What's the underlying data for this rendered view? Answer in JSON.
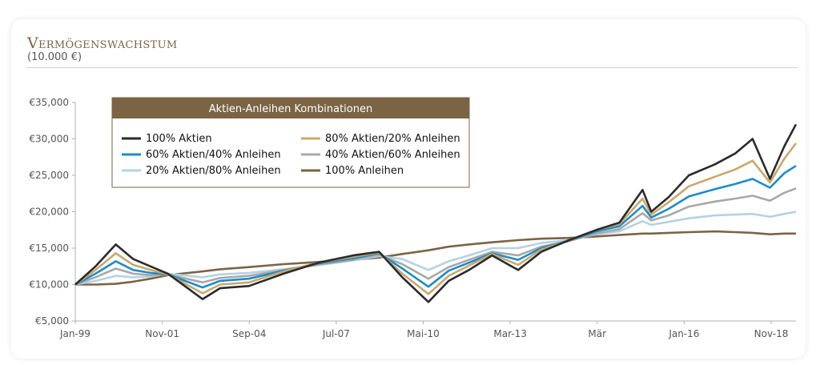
{
  "header": {
    "title": "Vermögenswachstum",
    "subtitle": "(10.000 €)"
  },
  "chart_data": {
    "type": "line",
    "title": "Vermögenswachstum",
    "subtitle": "(10.000 €)",
    "ylim": [
      5000,
      35000
    ],
    "y_ticks": [
      5000,
      10000,
      15000,
      20000,
      25000,
      30000,
      35000
    ],
    "y_tick_labels": [
      "€5,000",
      "€10,000",
      "€15,000",
      "€20,000",
      "€25,000",
      "€30,000",
      "€35,000"
    ],
    "x_tick_labels": [
      "Jan-99",
      "Nov-01",
      "Sep-04",
      "Jul-07",
      "Mai-10",
      "Mar-13",
      "Mär",
      "Jan-16",
      "Nov-18"
    ],
    "legend_title": "Aktien-Anleihen Kombinationen",
    "legend_position": "top-left",
    "grid": false,
    "x": [
      "1999-01",
      "1999-08",
      "2000-03",
      "2000-09",
      "2001-03",
      "2001-09",
      "2002-09",
      "2003-03",
      "2004-01",
      "2005-01",
      "2006-01",
      "2007-01",
      "2007-10",
      "2008-06",
      "2009-03",
      "2009-10",
      "2010-05",
      "2011-01",
      "2011-10",
      "2012-06",
      "2013-03",
      "2014-01",
      "2014-09",
      "2015-05",
      "2015-08",
      "2016-02",
      "2016-09",
      "2017-06",
      "2018-01",
      "2018-07",
      "2019-01",
      "2019-06",
      "2019-10"
    ],
    "series": [
      {
        "name": "100% Aktien",
        "color": "#2b2b2b",
        "values": [
          10000,
          12500,
          15500,
          13500,
          12500,
          11500,
          8000,
          9500,
          9800,
          11500,
          13000,
          14000,
          14500,
          11000,
          7600,
          10500,
          12000,
          14000,
          12000,
          14500,
          16000,
          17500,
          18500,
          23000,
          20000,
          22000,
          25000,
          26500,
          28000,
          30000,
          24500,
          29000,
          32000
        ]
      },
      {
        "name": "80% Aktien/20% Anleihen",
        "color": "#c9a86a",
        "values": [
          10000,
          12000,
          14300,
          12700,
          12000,
          11400,
          8800,
          10000,
          10300,
          11800,
          13000,
          13800,
          14400,
          11500,
          8700,
          11200,
          12600,
          14200,
          12700,
          14800,
          16000,
          17500,
          18300,
          21800,
          19600,
          21300,
          23500,
          24800,
          25800,
          27000,
          24000,
          27300,
          29400
        ]
      },
      {
        "name": "60% Aktien/40% Anleihen",
        "color": "#1b8ccb",
        "values": [
          10000,
          11500,
          13200,
          12000,
          11600,
          11400,
          9600,
          10500,
          10800,
          11900,
          12900,
          13600,
          14300,
          12200,
          9700,
          11900,
          13000,
          14300,
          13400,
          15000,
          16000,
          17300,
          18000,
          20800,
          19200,
          20400,
          22100,
          23100,
          23800,
          24500,
          23300,
          25300,
          26300
        ]
      },
      {
        "name": "40% Aktien/60% Anleihen",
        "color": "#a8a8a8",
        "values": [
          10000,
          11000,
          12200,
          11500,
          11300,
          11400,
          10300,
          10900,
          11200,
          12000,
          12700,
          13400,
          14100,
          12800,
          10800,
          12400,
          13400,
          14500,
          14000,
          15200,
          15900,
          17000,
          17600,
          19800,
          18800,
          19500,
          20700,
          21400,
          21800,
          22200,
          21500,
          22600,
          23200
        ]
      },
      {
        "name": "20% Aktien/80% Anleihen",
        "color": "#b4d2e6",
        "values": [
          10000,
          10500,
          11200,
          11000,
          11100,
          11500,
          11000,
          11400,
          11600,
          12100,
          12700,
          13300,
          13900,
          13500,
          12000,
          13200,
          14000,
          15000,
          15000,
          15700,
          16100,
          16900,
          17300,
          18700,
          18200,
          18600,
          19100,
          19500,
          19600,
          19700,
          19300,
          19700,
          20000
        ]
      },
      {
        "name": "100% Anleihen",
        "color": "#7b6444",
        "values": [
          10000,
          10000,
          10100,
          10400,
          10800,
          11300,
          11800,
          12100,
          12400,
          12800,
          13100,
          13400,
          13700,
          14200,
          14700,
          15200,
          15500,
          15800,
          16100,
          16300,
          16400,
          16600,
          16800,
          17000,
          17000,
          17100,
          17200,
          17300,
          17200,
          17100,
          16900,
          17000,
          17000
        ]
      }
    ]
  }
}
